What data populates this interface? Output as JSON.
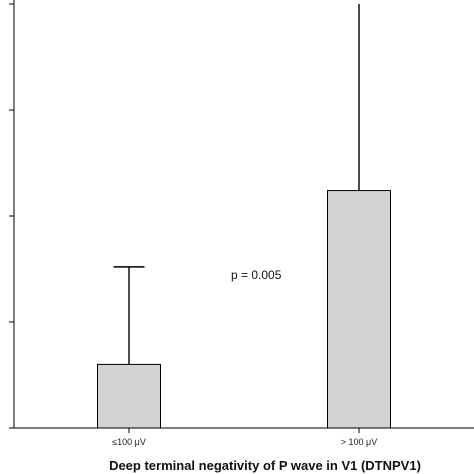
{
  "chart_data": {
    "type": "bar",
    "title": "",
    "xlabel": "Deep terminal negativity of P wave in V1 (DTNPV1)",
    "ylabel": "",
    "categories": [
      "≤100 μV",
      "> 100 μV"
    ],
    "series": [
      {
        "values": [
          0.6,
          2.24
        ],
        "error_upper": [
          1.52,
          4.0
        ]
      }
    ],
    "ylim": [
      0,
      4
    ],
    "yticks": [
      0,
      1,
      2,
      3,
      4
    ],
    "ytick_labels_visible": false,
    "bar_color": "#d3d3d3",
    "edge_color": "#000000",
    "grid": false,
    "annotation": "p = 0.005"
  }
}
